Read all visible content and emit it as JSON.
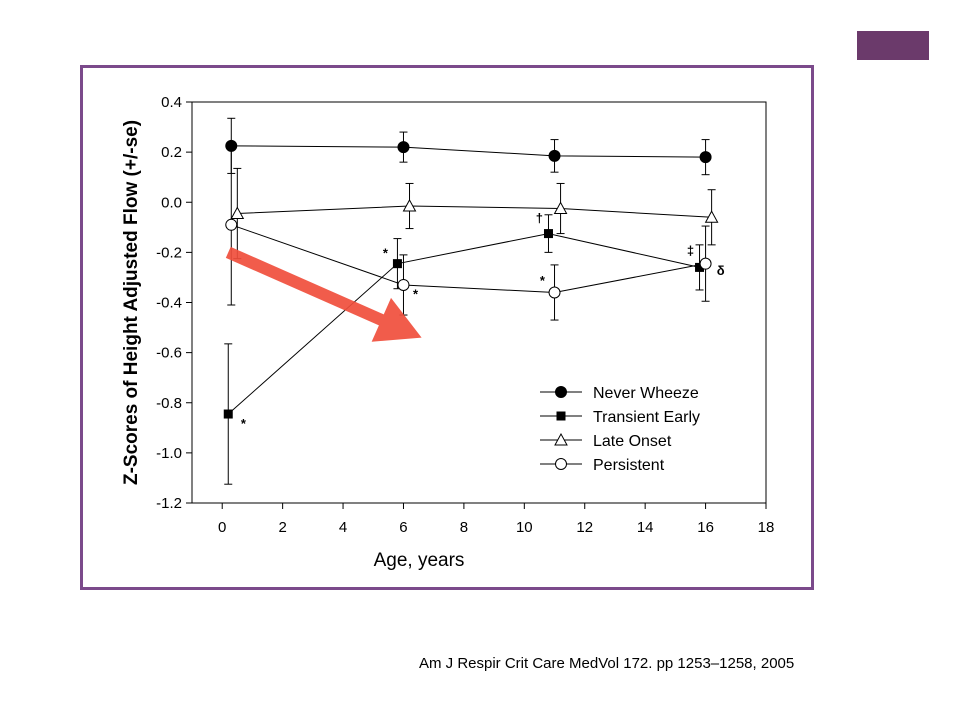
{
  "slide": {
    "accent_color": "#6b3a6b",
    "frame_color": "#7b4a8b",
    "citation": "Am J Respir Crit Care MedVol 172. pp 1253–1258, 2005"
  },
  "chart_data": {
    "type": "line",
    "xlabel": "Age, years",
    "ylabel": "Z-Scores of Height Adjusted Flow (+/-se)",
    "xlim": [
      -1,
      18
    ],
    "ylim": [
      -1.2,
      0.4
    ],
    "x_ticks": [
      "0",
      "2",
      "4",
      "6",
      "8",
      "10",
      "12",
      "14",
      "16",
      "18"
    ],
    "x_tick_values": [
      0,
      2,
      4,
      6,
      8,
      10,
      12,
      14,
      16,
      18
    ],
    "y_ticks": [
      "0.4",
      "0.2",
      "0.0",
      "-0.2",
      "-0.4",
      "-0.6",
      "-0.8",
      "-1.0",
      "-1.2"
    ],
    "y_tick_values": [
      0.4,
      0.2,
      0.0,
      -0.2,
      -0.4,
      -0.6,
      -0.8,
      -1.0,
      -1.2
    ],
    "legend_position": "bottom-right",
    "series": [
      {
        "name": "Never Wheeze",
        "marker": "filled-circle",
        "x": [
          0.3,
          6,
          11,
          16
        ],
        "y": [
          0.225,
          0.22,
          0.185,
          0.18
        ],
        "err": [
          0.11,
          0.06,
          0.065,
          0.07
        ]
      },
      {
        "name": "Transient Early",
        "marker": "filled-square",
        "x": [
          0.2,
          5.8,
          10.8,
          15.8
        ],
        "y": [
          -0.845,
          -0.245,
          -0.125,
          -0.26
        ],
        "err": [
          0.28,
          0.1,
          0.075,
          0.09
        ]
      },
      {
        "name": "Late Onset",
        "marker": "open-triangle",
        "x": [
          0.5,
          6.2,
          11.2,
          16.2
        ],
        "y": [
          -0.045,
          -0.015,
          -0.025,
          -0.06
        ],
        "err": [
          0.18,
          0.09,
          0.1,
          0.11
        ]
      },
      {
        "name": "Persistent",
        "marker": "open-circle",
        "x": [
          0.3,
          6,
          11,
          16
        ],
        "y": [
          -0.09,
          -0.33,
          -0.36,
          -0.245
        ],
        "err": [
          0.32,
          0.12,
          0.11,
          0.15
        ]
      }
    ],
    "annotations": [
      {
        "text": "*",
        "x": 0.7,
        "y": -0.9
      },
      {
        "text": "*",
        "x": 5.4,
        "y": -0.22
      },
      {
        "text": "*",
        "x": 6.4,
        "y": -0.385
      },
      {
        "text": "†",
        "x": 10.5,
        "y": -0.08
      },
      {
        "text": "*",
        "x": 10.6,
        "y": -0.33
      },
      {
        "text": "‡",
        "x": 15.5,
        "y": -0.21
      },
      {
        "text": "δ",
        "x": 16.5,
        "y": -0.29
      }
    ],
    "overlay_arrow": {
      "color": "#f04e3c",
      "from": [
        0.2,
        -0.2
      ],
      "to": [
        6.6,
        -0.54
      ]
    }
  }
}
